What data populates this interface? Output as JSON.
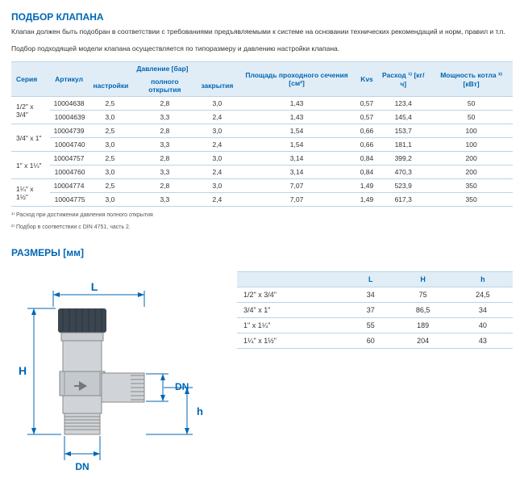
{
  "section1_title": "ПОДБОР КЛАПАНА",
  "desc_line1": "Клапан должен быть подобран в соответствии с требованиями предъявляемыми к системе на основании технических рекомендаций и норм, правил и т.п.",
  "desc_line2": "Подбор подходящей модели клапана осуществляется по типоразмеру и давлению настройки клапана.",
  "main_table": {
    "headers_row1": [
      "Серия",
      "Артикул",
      "Давление [бар]",
      "Площадь проходного сечения [см²]",
      "Kvs",
      "Расход ¹⁾ [кг/ч]",
      "Мощность котла ²⁾ [кВт]"
    ],
    "headers_row2": [
      "настройки",
      "полного открытия",
      "закрытия"
    ],
    "rows": [
      {
        "series": "1/2\" x 3/4\"",
        "art": "10004638",
        "p1": "2,5",
        "p2": "2,8",
        "p3": "3,0",
        "area": "1,43",
        "kvs": "0,57",
        "flow": "123,4",
        "power": "50"
      },
      {
        "series": "",
        "art": "10004639",
        "p1": "3,0",
        "p2": "3,3",
        "p3": "2,4",
        "area": "1,43",
        "kvs": "0,57",
        "flow": "145,4",
        "power": "50"
      },
      {
        "series": "3/4\" x 1\"",
        "art": "10004739",
        "p1": "2,5",
        "p2": "2,8",
        "p3": "3,0",
        "area": "1,54",
        "kvs": "0,66",
        "flow": "153,7",
        "power": "100"
      },
      {
        "series": "",
        "art": "10004740",
        "p1": "3,0",
        "p2": "3,3",
        "p3": "2,4",
        "area": "1,54",
        "kvs": "0,66",
        "flow": "181,1",
        "power": "100"
      },
      {
        "series": "1\" x 1¼\"",
        "art": "10004757",
        "p1": "2,5",
        "p2": "2,8",
        "p3": "3,0",
        "area": "3,14",
        "kvs": "0,84",
        "flow": "399,2",
        "power": "200"
      },
      {
        "series": "",
        "art": "10004760",
        "p1": "3,0",
        "p2": "3,3",
        "p3": "2,4",
        "area": "3,14",
        "kvs": "0,84",
        "flow": "470,3",
        "power": "200"
      },
      {
        "series": "1¼\" x 1½\"",
        "art": "10004774",
        "p1": "2,5",
        "p2": "2,8",
        "p3": "3,0",
        "area": "7,07",
        "kvs": "1,49",
        "flow": "523,9",
        "power": "350"
      },
      {
        "series": "",
        "art": "10004775",
        "p1": "3,0",
        "p2": "3,3",
        "p3": "2,4",
        "area": "7,07",
        "kvs": "1,49",
        "flow": "617,3",
        "power": "350"
      }
    ]
  },
  "footnote1": "¹⁾ Расход при достижении давления полного открытия",
  "footnote2": "²⁾ Подбор в соответствии с DIN 4751, часть 2.",
  "section2_title": "РАЗМЕРЫ [мм]",
  "dim_table": {
    "headers": [
      "",
      "L",
      "H",
      "h"
    ],
    "rows": [
      {
        "s": "1/2\" x 3/4\"",
        "L": "34",
        "H": "75",
        "h": "24,5"
      },
      {
        "s": "3/4\" x 1\"",
        "L": "37",
        "H": "86,5",
        "h": "34"
      },
      {
        "s": "1\" x 1¼\"",
        "L": "55",
        "H": "189",
        "h": "40"
      },
      {
        "s": "1¼\" x 1½\"",
        "L": "60",
        "H": "204",
        "h": "43"
      }
    ]
  },
  "labels": {
    "L": "L",
    "H": "H",
    "h": "h",
    "DN": "DN"
  },
  "colors": {
    "brand": "#0066b3",
    "header_bg": "#e1edf6",
    "border": "#bcd3e5",
    "body_fill": "#d0d4d8",
    "cap_fill": "#3a4550",
    "line": "#0066b3"
  }
}
